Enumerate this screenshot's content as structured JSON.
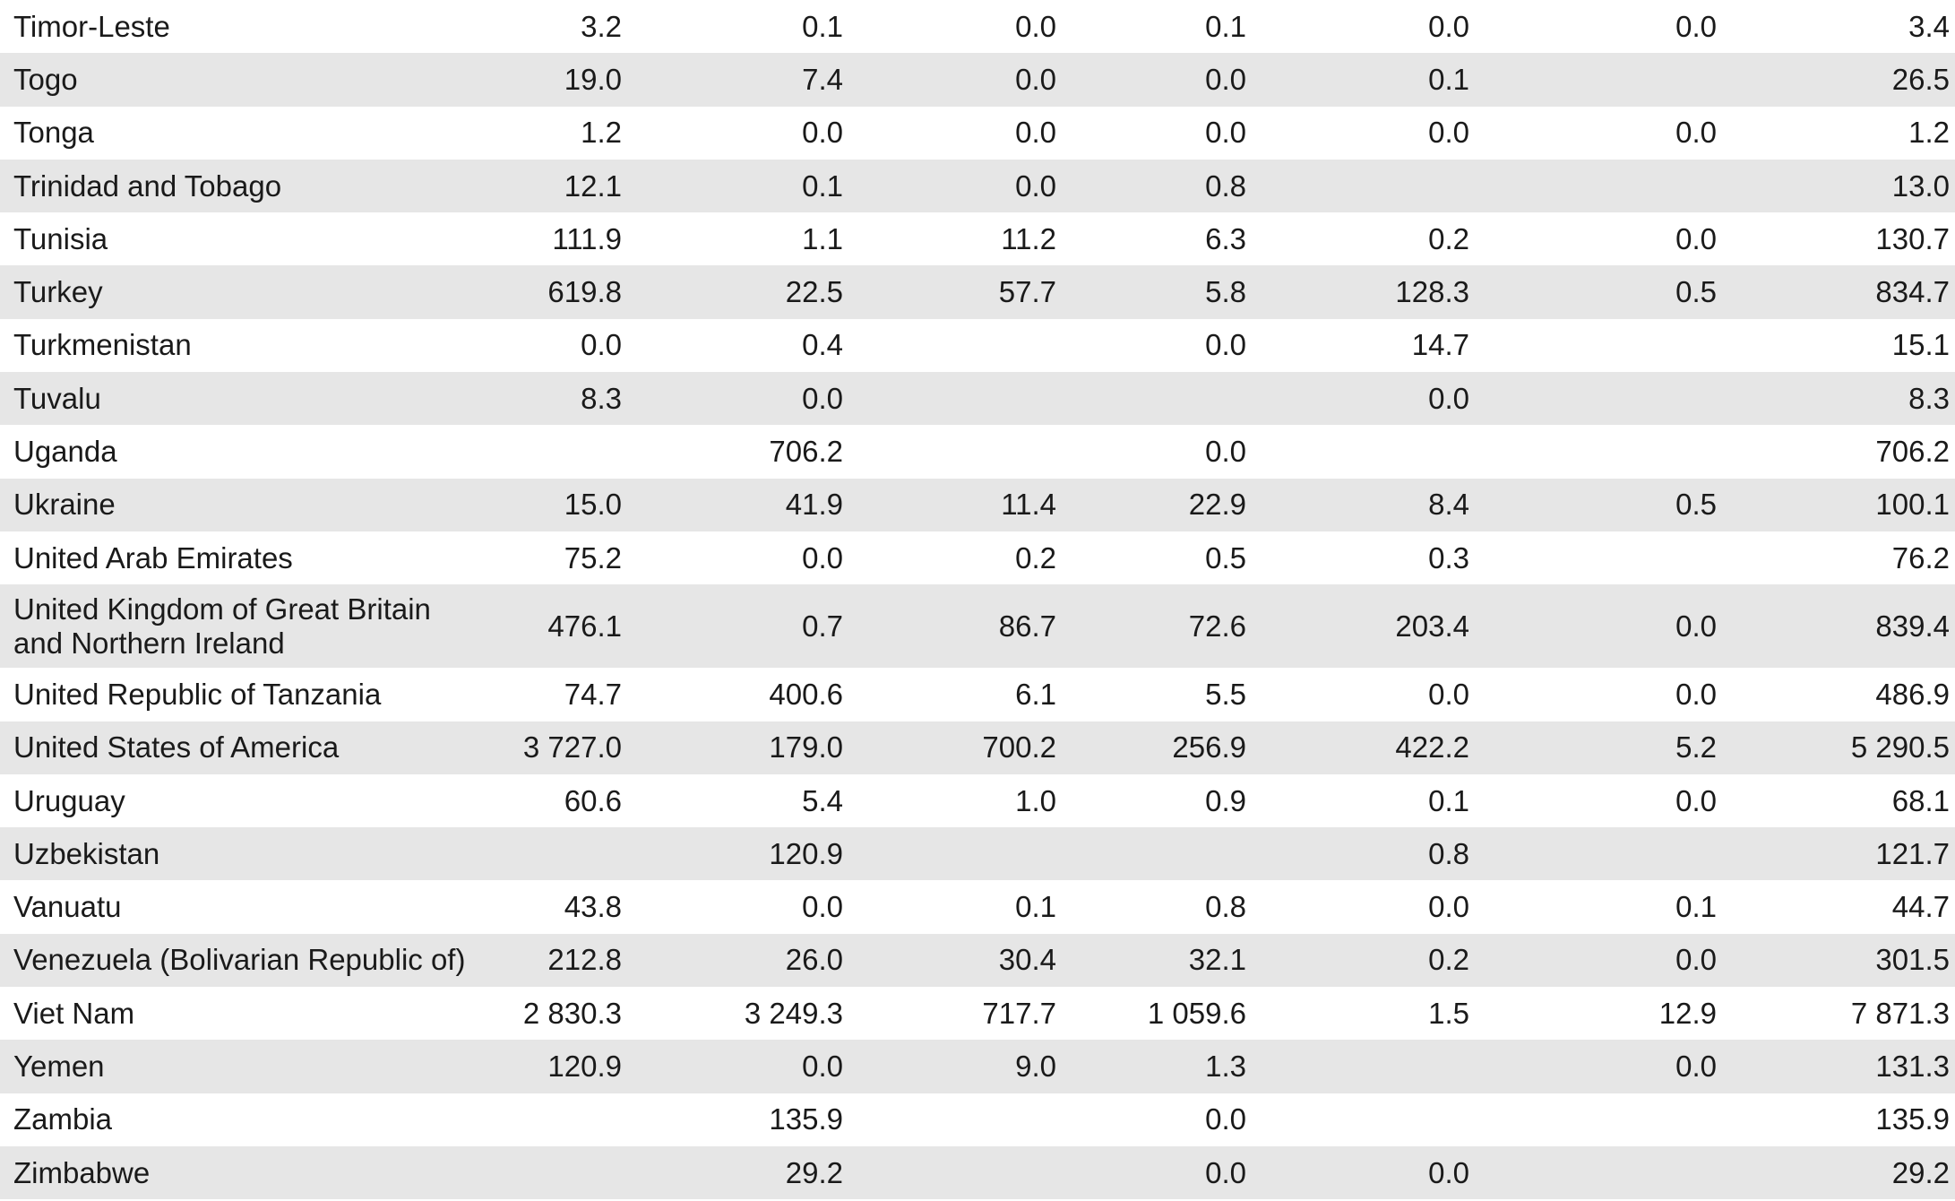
{
  "table": {
    "rows": [
      {
        "country": "Timor-Leste",
        "values": [
          "3.2",
          "0.1",
          "0.0",
          "0.1",
          "0.0",
          "0.0",
          "3.4"
        ]
      },
      {
        "country": "Togo",
        "values": [
          "19.0",
          "7.4",
          "0.0",
          "0.0",
          "0.1",
          "",
          "26.5"
        ]
      },
      {
        "country": "Tonga",
        "values": [
          "1.2",
          "0.0",
          "0.0",
          "0.0",
          "0.0",
          "0.0",
          "1.2"
        ]
      },
      {
        "country": "Trinidad and Tobago",
        "values": [
          "12.1",
          "0.1",
          "0.0",
          "0.8",
          "",
          "",
          "13.0"
        ]
      },
      {
        "country": "Tunisia",
        "values": [
          "111.9",
          "1.1",
          "11.2",
          "6.3",
          "0.2",
          "0.0",
          "130.7"
        ]
      },
      {
        "country": "Turkey",
        "values": [
          "619.8",
          "22.5",
          "57.7",
          "5.8",
          "128.3",
          "0.5",
          "834.7"
        ]
      },
      {
        "country": "Turkmenistan",
        "values": [
          "0.0",
          "0.4",
          "",
          "0.0",
          "14.7",
          "",
          "15.1"
        ]
      },
      {
        "country": "Tuvalu",
        "values": [
          "8.3",
          "0.0",
          "",
          "",
          "0.0",
          "",
          "8.3"
        ]
      },
      {
        "country": "Uganda",
        "values": [
          "",
          "706.2",
          "",
          "0.0",
          "",
          "",
          "706.2"
        ]
      },
      {
        "country": "Ukraine",
        "values": [
          "15.0",
          "41.9",
          "11.4",
          "22.9",
          "8.4",
          "0.5",
          "100.1"
        ]
      },
      {
        "country": "United Arab Emirates",
        "values": [
          "75.2",
          "0.0",
          "0.2",
          "0.5",
          "0.3",
          "",
          "76.2"
        ]
      },
      {
        "country": "United Kingdom of Great Britain and Northern Ireland",
        "values": [
          "476.1",
          "0.7",
          "86.7",
          "72.6",
          "203.4",
          "0.0",
          "839.4"
        ]
      },
      {
        "country": "United Republic of Tanzania",
        "values": [
          "74.7",
          "400.6",
          "6.1",
          "5.5",
          "0.0",
          "0.0",
          "486.9"
        ]
      },
      {
        "country": "United States of America",
        "values": [
          "3 727.0",
          "179.0",
          "700.2",
          "256.9",
          "422.2",
          "5.2",
          "5 290.5"
        ]
      },
      {
        "country": "Uruguay",
        "values": [
          "60.6",
          "5.4",
          "1.0",
          "0.9",
          "0.1",
          "0.0",
          "68.1"
        ]
      },
      {
        "country": "Uzbekistan",
        "values": [
          "",
          "120.9",
          "",
          "",
          "0.8",
          "",
          "121.7"
        ]
      },
      {
        "country": "Vanuatu",
        "values": [
          "43.8",
          "0.0",
          "0.1",
          "0.8",
          "0.0",
          "0.1",
          "44.7"
        ]
      },
      {
        "country": "Venezuela (Bolivarian Republic of)",
        "values": [
          "212.8",
          "26.0",
          "30.4",
          "32.1",
          "0.2",
          "0.0",
          "301.5"
        ]
      },
      {
        "country": "Viet Nam",
        "values": [
          "2 830.3",
          "3 249.3",
          "717.7",
          "1 059.6",
          "1.5",
          "12.9",
          "7 871.3"
        ]
      },
      {
        "country": "Yemen",
        "values": [
          "120.9",
          "0.0",
          "9.0",
          "1.3",
          "",
          "0.0",
          "131.3"
        ]
      },
      {
        "country": "Zambia",
        "values": [
          "",
          "135.9",
          "",
          "0.0",
          "",
          "",
          "135.9"
        ]
      },
      {
        "country": "Zimbabwe",
        "values": [
          "",
          "29.2",
          "",
          "0.0",
          "0.0",
          "",
          "29.2"
        ]
      }
    ]
  },
  "colors": {
    "stripe": "#e6e6e6",
    "text": "#1a1a1a",
    "background": "#ffffff"
  }
}
